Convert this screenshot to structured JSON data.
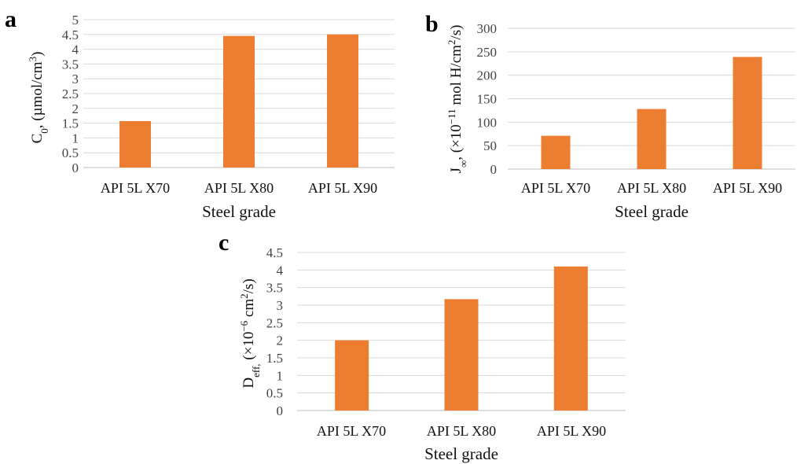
{
  "colors": {
    "bar": "#ED7D31",
    "grid": "#D9D9D9"
  },
  "chart_data": [
    {
      "type": "bar",
      "panel_label": "a",
      "categories": [
        "API 5L X70",
        "API 5L X80",
        "API 5L X90"
      ],
      "values": [
        1.57,
        4.45,
        4.5
      ],
      "xlabel": "Steel grade",
      "ylabel": "C0, (µmol/cm3)",
      "ylim": [
        0,
        5
      ],
      "yticks": [
        "0",
        "0.5",
        "1",
        "1.5",
        "2",
        "2.5",
        "3",
        "3.5",
        "4",
        "4.5",
        "5"
      ],
      "grid": true
    },
    {
      "type": "bar",
      "panel_label": "b",
      "categories": [
        "API 5L X70",
        "API 5L X80",
        "API 5L X90"
      ],
      "values": [
        71,
        128,
        239
      ],
      "xlabel": "Steel grade",
      "ylabel": "J∞, (×10−11 mol H/cm2/s)",
      "ylim": [
        0,
        300
      ],
      "yticks": [
        "0",
        "50",
        "100",
        "150",
        "200",
        "250",
        "300"
      ],
      "grid": true
    },
    {
      "type": "bar",
      "panel_label": "c",
      "categories": [
        "API 5L X70",
        "API 5L X80",
        "API 5L X90"
      ],
      "values": [
        2.0,
        3.17,
        4.1
      ],
      "xlabel": "Steel grade",
      "ylabel": "Deff, (×10−6 cm2/s)",
      "ylim": [
        0,
        4.5
      ],
      "yticks": [
        "0",
        "0.5",
        "1",
        "1.5",
        "2",
        "2.5",
        "3",
        "3.5",
        "4",
        "4.5"
      ],
      "grid": true
    }
  ]
}
